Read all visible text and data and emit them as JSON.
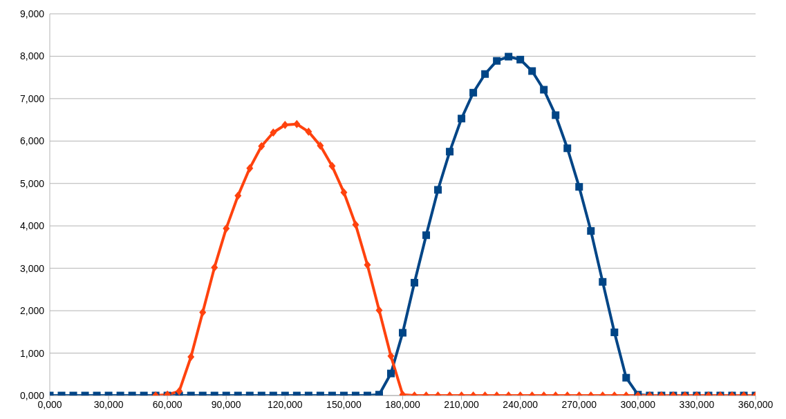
{
  "chart_data": {
    "type": "line",
    "x": [
      0,
      6,
      12,
      18,
      24,
      30,
      36,
      42,
      48,
      54,
      60,
      66,
      72,
      78,
      84,
      90,
      96,
      102,
      108,
      114,
      120,
      126,
      132,
      138,
      144,
      150,
      156,
      162,
      168,
      174,
      180,
      186,
      192,
      198,
      204,
      210,
      216,
      222,
      228,
      234,
      240,
      246,
      252,
      258,
      264,
      270,
      276,
      282,
      288,
      294,
      300,
      306,
      312,
      318,
      324,
      330,
      336,
      342,
      348,
      354,
      360
    ],
    "series": [
      {
        "color": "#004586",
        "marker": "square",
        "values": [
          0,
          0,
          0,
          0,
          0,
          0,
          0,
          0,
          0,
          0,
          0,
          0,
          0,
          0,
          0,
          0,
          0,
          0,
          0,
          0,
          0,
          0,
          0,
          0,
          0,
          0,
          0,
          0,
          0.02,
          0.52,
          1.48,
          2.66,
          3.78,
          4.85,
          5.75,
          6.53,
          7.14,
          7.58,
          7.89,
          7.99,
          7.92,
          7.65,
          7.21,
          6.61,
          5.83,
          4.92,
          3.88,
          2.68,
          1.49,
          0.42,
          0.02,
          0,
          0,
          0,
          0,
          0,
          0,
          0,
          0,
          0,
          0
        ]
      },
      {
        "color": "#ff420e",
        "marker": "diamond",
        "x": [
          54,
          60,
          66,
          72,
          78,
          84,
          90,
          96,
          102,
          108,
          114,
          120,
          126,
          132,
          138,
          144,
          150,
          156,
          162,
          168,
          174,
          180,
          186,
          192,
          198,
          204,
          210,
          216,
          222,
          228,
          234,
          240,
          246,
          252,
          258,
          264,
          270,
          276,
          282,
          288,
          294,
          300,
          306,
          312,
          318,
          324,
          330,
          336,
          342,
          348,
          354,
          360
        ],
        "values": [
          0,
          0.02,
          0.1,
          0.91,
          1.96,
          3.02,
          3.94,
          4.71,
          5.36,
          5.88,
          6.2,
          6.38,
          6.4,
          6.22,
          5.89,
          5.41,
          4.79,
          4.03,
          3.08,
          2.01,
          0.93,
          0.02,
          0,
          0,
          0,
          0,
          0,
          0,
          0,
          0,
          0,
          0,
          0,
          0,
          0,
          0,
          0,
          0,
          0,
          0,
          0,
          0,
          0,
          0,
          0,
          0,
          0,
          0,
          0,
          0,
          0,
          0
        ]
      }
    ],
    "xlim": [
      0,
      360
    ],
    "xticks": [
      {
        "value": 0,
        "label": "0,000"
      },
      {
        "value": 30,
        "label": "30,000"
      },
      {
        "value": 60,
        "label": "60,000"
      },
      {
        "value": 90,
        "label": "90,000"
      },
      {
        "value": 120,
        "label": "120,000"
      },
      {
        "value": 150,
        "label": "150,000"
      },
      {
        "value": 180,
        "label": "180,000"
      },
      {
        "value": 210,
        "label": "210,000"
      },
      {
        "value": 240,
        "label": "240,000"
      },
      {
        "value": 270,
        "label": "270,000"
      },
      {
        "value": 300,
        "label": "300,000"
      },
      {
        "value": 330,
        "label": "330,000"
      },
      {
        "value": 360,
        "label": "360,000"
      }
    ],
    "ylim": [
      0,
      9
    ],
    "yticks": [
      {
        "value": 0,
        "label": "0,000"
      },
      {
        "value": 1,
        "label": "1,000"
      },
      {
        "value": 2,
        "label": "2,000"
      },
      {
        "value": 3,
        "label": "3,000"
      },
      {
        "value": 4,
        "label": "4,000"
      },
      {
        "value": 5,
        "label": "5,000"
      },
      {
        "value": 6,
        "label": "6,000"
      },
      {
        "value": 7,
        "label": "7,000"
      },
      {
        "value": 8,
        "label": "8,000"
      },
      {
        "value": 9,
        "label": "9,000"
      }
    ],
    "grid": "y",
    "line_style": "solid",
    "legend": false
  }
}
